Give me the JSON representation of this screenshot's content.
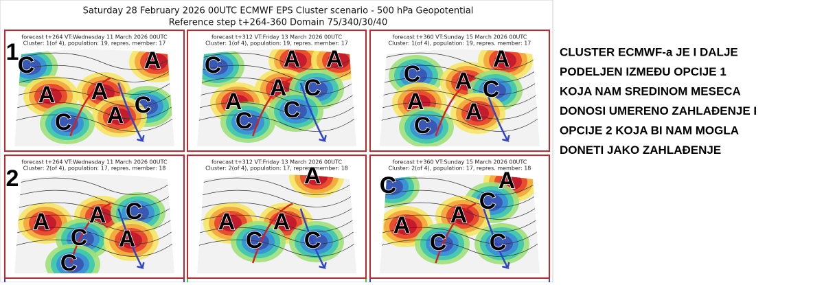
{
  "header": {
    "title": "Saturday 28 February 2026 00UTC ECMWF EPS Cluster scenario - 500 hPa Geopotential",
    "subtitle": "Reference step t+264-360 Domain 75/340/30/40"
  },
  "rows": [
    {
      "label": "1",
      "panels": [
        {
          "forecast": "forecast t+264 VT:Wednesday 11 March 2026 00UTC",
          "cluster": "Cluster: 1(of 4), population: 19, repres. member: 17",
          "letters": [
            "C",
            "A",
            "A",
            "A",
            "C",
            "A",
            "C"
          ]
        },
        {
          "forecast": "forecast t+312 VT:Friday 13 March 2026 00UTC",
          "cluster": "Cluster: 1(of 4), population: 19, repres. member: 17",
          "letters": [
            "C",
            "A",
            "A",
            "A",
            "C",
            "A",
            "C",
            "C"
          ]
        },
        {
          "forecast": "forecast t+360 VT:Sunday 15 March 2026 00UTC",
          "cluster": "Cluster: 1(of 4), population: 19, repres. member: 17",
          "letters": [
            "A",
            "C",
            "A",
            "C",
            "A",
            "A",
            "C"
          ]
        }
      ]
    },
    {
      "label": "2",
      "panels": [
        {
          "forecast": "forecast t+264 VT:Wednesday 11 March 2026 00UTC",
          "cluster": "Cluster: 2(of 4), population: 17, repres. member: 18",
          "letters": [
            "A",
            "A",
            "C",
            "C",
            "A",
            "C"
          ]
        },
        {
          "forecast": "forecast t+312 VT:Friday 13 March 2026 00UTC",
          "cluster": "Cluster: 2(of 4), population: 17, repres. member: 18",
          "letters": [
            "A",
            "A",
            "A",
            "C",
            "C"
          ]
        },
        {
          "forecast": "forecast t+360 VT:Sunday 15 March 2026 00UTC",
          "cluster": "Cluster: 2(of 4), population: 17, repres. member: 18",
          "letters": [
            "C",
            "A",
            "C",
            "A",
            "A",
            "C",
            "C"
          ]
        }
      ]
    }
  ],
  "commentary": [
    "CLUSTER ECMWF-a JE I DALJE",
    "PODELJEN IZMEĐU OPCIJE 1",
    "KOJA NAM SREDINOM MESECA",
    "DONOSI UMERENO ZAHLAĐENJE I",
    "OPCIJE 2 KOJA BI NAM MOGLA",
    "DONETI JAKO ZAHLAĐENJE"
  ]
}
